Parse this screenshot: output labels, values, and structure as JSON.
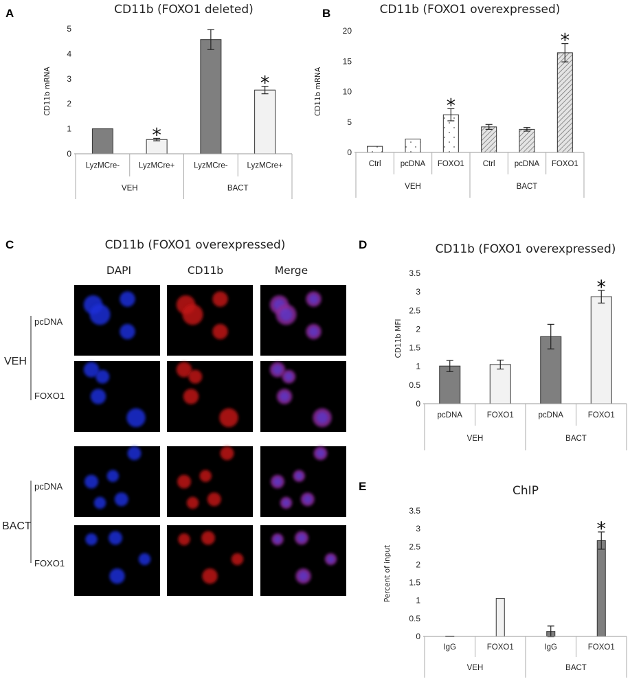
{
  "figure": {
    "panel_letters": [
      "A",
      "B",
      "C",
      "D",
      "E"
    ]
  },
  "chart_data": [
    {
      "id": "A",
      "type": "bar",
      "title": "CD11b (FOXO1 deleted)",
      "ylabel": "CD11b mRNA",
      "ylim": [
        0,
        5
      ],
      "yticks": [
        0,
        1,
        2,
        3,
        4,
        5
      ],
      "categories": [
        "LyzMCre-",
        "LyzMCre+",
        "LyzMCre-",
        "LyzMCre+"
      ],
      "groups": [
        {
          "label": "VEH",
          "span": [
            0,
            1
          ]
        },
        {
          "label": "BACT",
          "span": [
            2,
            3
          ]
        }
      ],
      "values": [
        1.0,
        0.57,
        4.57,
        2.55
      ],
      "errors": [
        0,
        0.05,
        0.4,
        0.15
      ],
      "fills": [
        "dark",
        "light",
        "dark",
        "light"
      ],
      "significant": [
        false,
        true,
        false,
        true
      ]
    },
    {
      "id": "B",
      "type": "bar",
      "title": "CD11b (FOXO1 overexpressed)",
      "ylabel": "CD11b mRNA",
      "ylim": [
        0,
        20
      ],
      "yticks": [
        0,
        5,
        10,
        15,
        20
      ],
      "categories": [
        "Ctrl",
        "pcDNA",
        "FOXO1",
        "Ctrl",
        "pcDNA",
        "FOXO1"
      ],
      "groups": [
        {
          "label": "VEH",
          "span": [
            0,
            2
          ]
        },
        {
          "label": "BACT",
          "span": [
            3,
            5
          ]
        }
      ],
      "values": [
        1.0,
        2.2,
        6.2,
        4.2,
        3.8,
        16.4
      ],
      "errors": [
        0,
        0,
        1.0,
        0.4,
        0.3,
        1.5
      ],
      "fills": [
        "dots",
        "dots",
        "dots",
        "hatch",
        "hatch",
        "hatch"
      ],
      "significant": [
        false,
        false,
        true,
        false,
        false,
        true
      ]
    },
    {
      "id": "D",
      "type": "bar",
      "title": "CD11b (FOXO1 overexpressed)",
      "ylabel": "CD11b MFI",
      "ylim": [
        0,
        3.5
      ],
      "yticks": [
        0,
        0.5,
        1,
        1.5,
        2,
        2.5,
        3,
        3.5
      ],
      "categories": [
        "pcDNA",
        "FOXO1",
        "pcDNA",
        "FOXO1"
      ],
      "groups": [
        {
          "label": "VEH",
          "span": [
            0,
            1
          ]
        },
        {
          "label": "BACT",
          "span": [
            2,
            3
          ]
        }
      ],
      "values": [
        1.01,
        1.05,
        1.8,
        2.87
      ],
      "errors": [
        0.15,
        0.12,
        0.33,
        0.17
      ],
      "fills": [
        "dark",
        "light",
        "dark",
        "light"
      ],
      "significant": [
        false,
        false,
        false,
        true
      ]
    },
    {
      "id": "E",
      "type": "bar",
      "title": "ChIP",
      "ylabel": "Percent of input",
      "ylim": [
        0,
        3.5
      ],
      "yticks": [
        0,
        0.5,
        1,
        1.5,
        2,
        2.5,
        3,
        3.5
      ],
      "categories": [
        "IgG",
        "FOXO1",
        "IgG",
        "FOXO1"
      ],
      "groups": [
        {
          "label": "VEH",
          "span": [
            0,
            1
          ]
        },
        {
          "label": "BACT",
          "span": [
            2,
            3
          ]
        }
      ],
      "values": [
        0.01,
        1.06,
        0.14,
        2.67
      ],
      "errors": [
        0,
        0,
        0.15,
        0.24
      ],
      "fills": [
        "dark",
        "light",
        "dark",
        "dark"
      ],
      "significant": [
        false,
        false,
        false,
        true
      ]
    }
  ],
  "microscopy": {
    "title": "CD11b (FOXO1 overexpressed)",
    "columns": [
      "DAPI",
      "CD11b",
      "Merge"
    ],
    "groups": [
      {
        "label": "VEH",
        "rows": [
          "pcDNA",
          "FOXO1"
        ]
      },
      {
        "label": "BACT",
        "rows": [
          "pcDNA",
          "FOXO1"
        ]
      }
    ],
    "colors": {
      "background": "#000000",
      "dapi": "#1c2fd8",
      "cd11b": "#c01818",
      "merge": "#8a2a9a"
    }
  }
}
